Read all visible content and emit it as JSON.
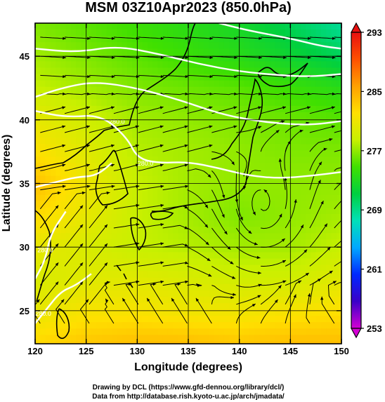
{
  "title": "MSM 03Z10Apr2023 (850.0hPa)",
  "credits": {
    "line1": "Drawing by DCL (https://www.gfd-dennou.org/library/dcl/)",
    "line2": "Data from http://database.rish.kyoto-u.ac.jp/arch/jmadata/"
  },
  "chart_data": {
    "type": "heatmap",
    "title": "MSM 03Z10Apr2023 (850.0hPa)",
    "xlabel": "Longitude (degrees)",
    "ylabel": "Latitude  (degrees)",
    "xlim": [
      120,
      150
    ],
    "ylim": [
      22.4,
      47.6
    ],
    "x_ticks": [
      120,
      125,
      130,
      135,
      140,
      145,
      150
    ],
    "x_tick_labels": [
      "120",
      "125",
      "130",
      "135",
      "140",
      "145",
      "150"
    ],
    "y_ticks": [
      25,
      30,
      35,
      40,
      45
    ],
    "y_tick_labels": [
      "25",
      "30",
      "35",
      "40",
      "45"
    ],
    "grid": true,
    "colorbar": {
      "min": 253,
      "max": 293,
      "tick_values": [
        253,
        261,
        269,
        277,
        285,
        293
      ],
      "tick_labels": [
        "253",
        "261",
        "269",
        "277",
        "285",
        "293"
      ],
      "colors": [
        "#d400d4",
        "#3a00c8",
        "#0028ff",
        "#00a8ff",
        "#00e0b8",
        "#00d040",
        "#40e000",
        "#c8f000",
        "#ffe000",
        "#ffa000",
        "#ff5000",
        "#e81010"
      ],
      "placement": "right"
    },
    "field": {
      "name": "temperature",
      "units": "K",
      "grid_lons": [
        120,
        125,
        130,
        135,
        140,
        145,
        150
      ],
      "grid_lats": [
        47.5,
        45,
        42.5,
        40,
        37.5,
        35,
        32.5,
        30,
        27.5,
        25,
        22.5
      ],
      "values": [
        [
          276.5,
          275.5,
          274.5,
          273.5,
          272.5,
          270.5,
          268.5
        ],
        [
          277.5,
          276.5,
          275.5,
          274.5,
          273.5,
          272.0,
          270.5
        ],
        [
          278.5,
          277.5,
          276.5,
          276.0,
          275.5,
          274.5,
          273.5
        ],
        [
          280.5,
          279.0,
          277.5,
          277.0,
          276.5,
          276.0,
          275.5
        ],
        [
          282.0,
          280.0,
          278.0,
          277.5,
          277.0,
          276.5,
          276.5
        ],
        [
          284.0,
          281.0,
          278.5,
          277.5,
          277.0,
          277.0,
          277.0
        ],
        [
          282.5,
          280.5,
          278.5,
          277.5,
          276.5,
          277.0,
          277.5
        ],
        [
          280.5,
          279.5,
          278.5,
          278.0,
          277.5,
          277.5,
          278.5
        ],
        [
          279.5,
          280.0,
          280.0,
          279.5,
          279.0,
          279.0,
          280.0
        ],
        [
          280.5,
          281.5,
          281.5,
          281.0,
          281.0,
          281.5,
          282.0
        ],
        [
          282.5,
          283.5,
          284.0,
          284.0,
          283.5,
          284.0,
          284.0
        ]
      ]
    },
    "contour_lines": [
      {
        "level": 266,
        "points": [
          [
            138,
            47.6
          ],
          [
            141,
            47
          ],
          [
            145,
            46.4
          ],
          [
            148,
            45.8
          ],
          [
            150,
            45.6
          ]
        ]
      },
      {
        "level": 272,
        "points": [
          [
            120,
            45.6
          ],
          [
            124,
            45.3
          ],
          [
            128,
            45.8
          ],
          [
            132,
            45.2
          ],
          [
            136,
            44.4
          ],
          [
            140,
            43.8
          ],
          [
            144,
            43.5
          ],
          [
            147,
            43.4
          ],
          [
            150,
            43.6
          ]
        ]
      },
      {
        "level": 275,
        "points": [
          [
            120,
            41.8
          ],
          [
            123,
            42.6
          ],
          [
            126,
            43.0
          ],
          [
            130,
            42.5
          ],
          [
            134,
            41.6
          ],
          [
            138,
            40.5
          ],
          [
            141,
            40.0
          ],
          [
            144,
            39.7
          ],
          [
            147,
            39.6
          ],
          [
            150,
            39.9
          ]
        ]
      },
      {
        "level": 278,
        "points": [
          [
            120,
            40.7
          ],
          [
            123,
            40.2
          ],
          [
            126.5,
            40.4
          ],
          [
            129,
            38.6
          ],
          [
            130,
            37.0
          ],
          [
            132,
            36.6
          ],
          [
            135,
            36.7
          ],
          [
            138,
            36.2
          ],
          [
            141,
            35.6
          ],
          [
            144,
            35.4
          ],
          [
            147,
            35.6
          ],
          [
            150,
            35.9
          ]
        ]
      },
      {
        "level": 281,
        "points": [
          [
            120,
            34.7
          ],
          [
            122,
            35.1
          ],
          [
            124,
            35.5
          ],
          [
            126,
            35.6
          ],
          [
            127.5,
            36.6
          ]
        ]
      },
      {
        "level": 280,
        "points": [
          [
            120,
            27.5
          ],
          [
            121,
            29.0
          ],
          [
            121.5,
            31.0
          ],
          [
            123,
            32.8
          ]
        ]
      },
      {
        "level": 280,
        "points": [
          [
            120,
            24.0
          ],
          [
            121,
            25.0
          ],
          [
            122.5,
            26.5
          ],
          [
            124,
            27.0
          ],
          [
            125.5,
            27.9
          ]
        ]
      }
    ],
    "contour_labels": [
      {
        "text": "280.0",
        "lon": 128.0,
        "lat": 39.7
      },
      {
        "text": "280.0",
        "lon": 130.8,
        "lat": 36.4
      },
      {
        "text": "280.0",
        "lon": 121.0,
        "lat": 29.6
      },
      {
        "text": "280.0",
        "lon": 120.8,
        "lat": 24.6
      }
    ]
  }
}
